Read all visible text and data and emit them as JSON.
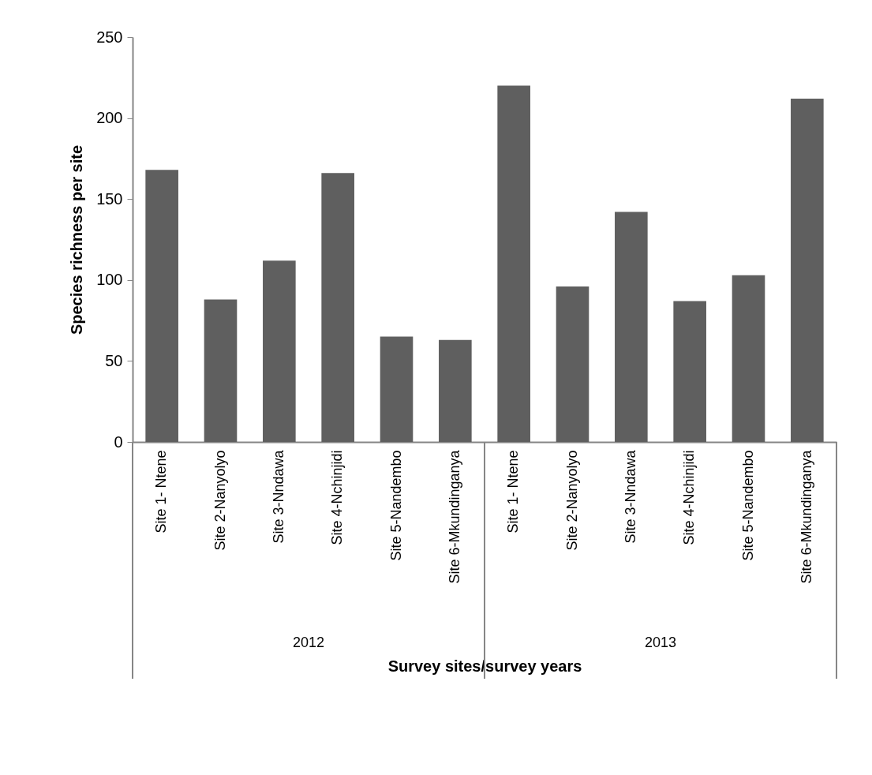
{
  "chart_data": {
    "type": "bar",
    "xlabel": "Survey sites/survey years",
    "ylabel": "Species richness per site",
    "categories": [
      "Site 1- Ntene",
      "Site 2-Nanyolyo",
      "Site 3-Nndawa",
      "Site 4-Nchinjidi",
      "Site 5-Nandembo",
      "Site 6-Mkundinganya",
      "Site 1- Ntene",
      "Site 2-Nanyolyo",
      "Site 3-Nndawa",
      "Site 4-Nchinjidi",
      "Site 5-Nandembo",
      "Site 6-Mkundinganya"
    ],
    "values": [
      168,
      88,
      112,
      166,
      65,
      63,
      220,
      96,
      142,
      87,
      103,
      212
    ],
    "color": "#5f5f5f",
    "ylim": [
      0,
      250
    ],
    "yticks": [
      0,
      50,
      100,
      150,
      200,
      250
    ],
    "grid": false,
    "annotations": [
      "2012",
      "2013"
    ]
  }
}
